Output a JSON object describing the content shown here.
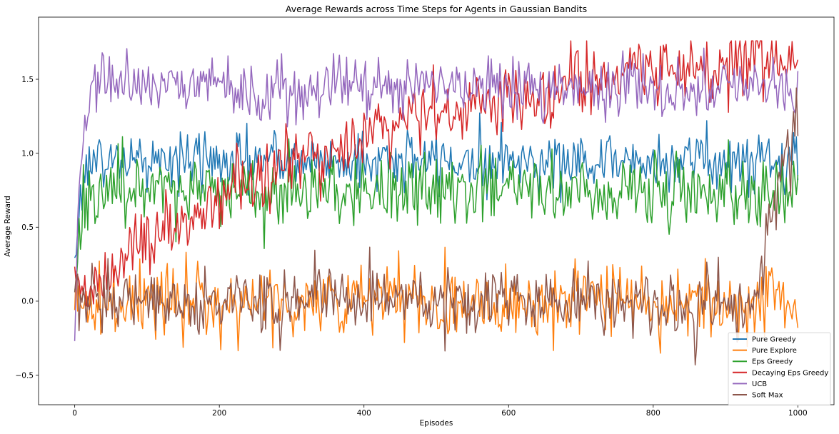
{
  "chart_data": {
    "type": "line",
    "title": "Average Rewards across Time Steps for Agents in Gaussian Bandits",
    "xlabel": "Episodes",
    "ylabel": "Average Reward",
    "xlim": [
      -50,
      1050
    ],
    "ylim": [
      -0.7,
      1.92
    ],
    "x_ticks": [
      0,
      200,
      400,
      600,
      800,
      1000
    ],
    "x_tick_labels": [
      "0",
      "200",
      "400",
      "600",
      "800",
      "1000"
    ],
    "y_ticks": [
      -0.5,
      0.0,
      0.5,
      1.0,
      1.5
    ],
    "y_tick_labels": [
      "−0.5",
      "0.0",
      "0.5",
      "1.0",
      "1.5"
    ],
    "grid": false,
    "legend_position": "lower right",
    "x": {
      "start": 0,
      "end": 1000,
      "step": 2
    },
    "series": [
      {
        "name": "Pure Greedy",
        "color": "#1f77b4",
        "values_approx": "rises from 0.2 at x=0 to ~0.95 by x=20; fluctuates around 0.95 (0.75-1.25) through x=1000"
      },
      {
        "name": "Pure Explore",
        "color": "#ff7f0e",
        "values_approx": "fluctuates around 0.0 (range -0.55 to 0.45) over x=0-1000"
      },
      {
        "name": "Eps Greedy",
        "color": "#2ca02c",
        "values_approx": "rises from 0.1 to ~0.75 by x=30; fluctuates around 0.75 (0.4-1.1) through x=1000"
      },
      {
        "name": "Decaying Eps Greedy",
        "color": "#d62728",
        "values_approx": "rises from 0.0 at x=0 to ~0.8 at x=300, ~1.05 at x=500, ~1.3 at x=800, ~1.45 at x=1000"
      },
      {
        "name": "UCB",
        "color": "#9467bd",
        "values_approx": "rises from -0.2 at x=0 to ~1.45 by x=25; fluctuates around 1.45 (1.2-1.8) through x=1000"
      },
      {
        "name": "Soft Max",
        "color": "#8c564b",
        "values_approx": "fluctuates around 0.0 (range -0.45 to 0.4) until x~950, then climbs to ~1.5 at x=1000"
      }
    ]
  }
}
